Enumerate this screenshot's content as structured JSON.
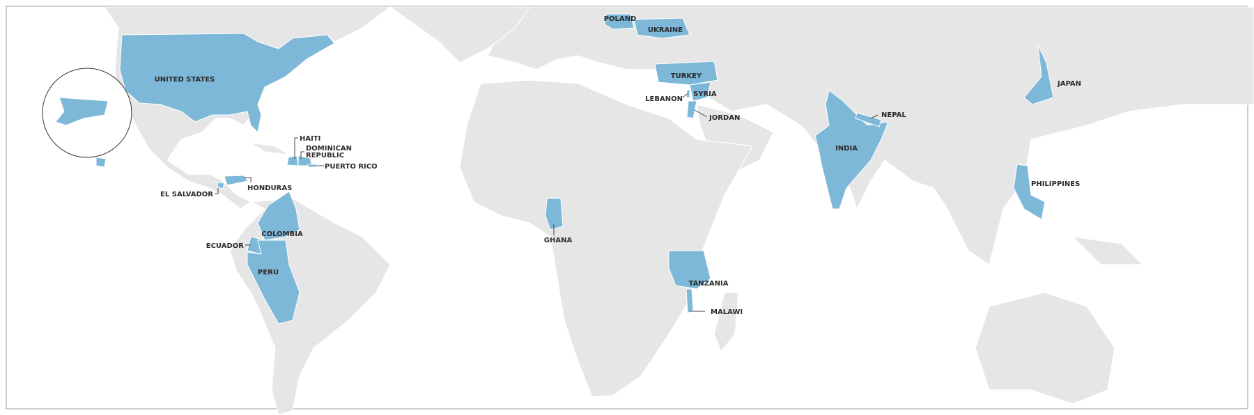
{
  "colors": {
    "highlight": "#7db8d8",
    "land": "#e6e6e6",
    "background": "#ffffff",
    "border": "#999999"
  },
  "labels": {
    "united_states": "UNITED STATES",
    "haiti": "HAITI",
    "dominican_republic_1": "DOMINICAN",
    "dominican_republic_2": "REPUBLIC",
    "puerto_rico": "PUERTO RICO",
    "el_salvador": "EL SALVADOR",
    "honduras": "HONDURAS",
    "colombia": "COLOMBIA",
    "ecuador": "ECUADOR",
    "peru": "PERU",
    "ghana": "GHANA",
    "poland": "POLAND",
    "ukraine": "UKRAINE",
    "turkey": "TURKEY",
    "syria": "SYRIA",
    "lebanon": "LEBANON",
    "jordan": "JORDAN",
    "tanzania": "TANZANIA",
    "malawi": "MALAWI",
    "india": "INDIA",
    "nepal": "NEPAL",
    "japan": "JAPAN",
    "philippines": "PHILIPPINES"
  }
}
